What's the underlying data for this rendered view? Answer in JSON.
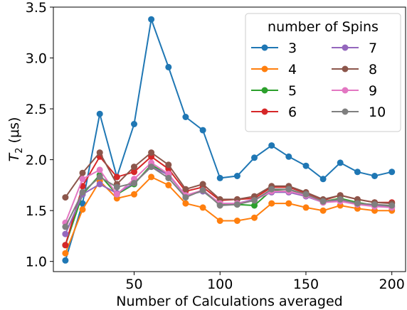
{
  "chart_data": {
    "type": "line",
    "title": "",
    "xlabel": "Number of Calculations averaged",
    "ylabel_parts": {
      "symbol": "T",
      "subscript": "2",
      "unit": " (μs)"
    },
    "xlim": [
      3,
      208
    ],
    "ylim": [
      0.9,
      3.5
    ],
    "xticks": [
      50,
      100,
      150,
      200
    ],
    "xtick_labels": [
      "50",
      "100",
      "150",
      "200"
    ],
    "yticks": [
      1.0,
      1.5,
      2.0,
      2.5,
      3.0,
      3.5
    ],
    "ytick_labels": [
      "1.0",
      "1.5",
      "2.0",
      "2.5",
      "3.0",
      "3.5"
    ],
    "grid": false,
    "legend": {
      "title": "number of Spins",
      "location": "upper right",
      "columns": 2
    },
    "x": [
      10,
      20,
      30,
      40,
      50,
      60,
      70,
      80,
      90,
      100,
      110,
      120,
      130,
      140,
      150,
      160,
      170,
      180,
      190,
      200
    ],
    "series": [
      {
        "name": "3",
        "color": "#1f77b4",
        "values": [
          1.01,
          1.57,
          2.45,
          1.83,
          2.35,
          3.38,
          2.91,
          2.42,
          2.29,
          1.82,
          1.84,
          2.02,
          2.14,
          2.03,
          1.94,
          1.81,
          1.97,
          1.88,
          1.84,
          1.88
        ]
      },
      {
        "name": "4",
        "color": "#ff7f0e",
        "values": [
          1.08,
          1.51,
          1.79,
          1.62,
          1.66,
          1.83,
          1.75,
          1.57,
          1.53,
          1.4,
          1.4,
          1.43,
          1.57,
          1.57,
          1.53,
          1.5,
          1.55,
          1.52,
          1.5,
          1.5
        ]
      },
      {
        "name": "5",
        "color": "#2ca02c",
        "values": [
          1.16,
          1.66,
          1.85,
          1.66,
          1.76,
          1.95,
          1.85,
          1.65,
          1.69,
          1.56,
          1.56,
          1.55,
          1.7,
          1.71,
          1.65,
          1.59,
          1.62,
          1.58,
          1.55,
          1.54
        ]
      },
      {
        "name": "6",
        "color": "#d62728",
        "values": [
          1.16,
          1.74,
          2.03,
          1.83,
          1.88,
          2.03,
          1.91,
          1.69,
          1.73,
          1.6,
          1.61,
          1.62,
          1.73,
          1.73,
          1.67,
          1.6,
          1.65,
          1.61,
          1.58,
          1.58
        ]
      },
      {
        "name": "7",
        "color": "#9467bd",
        "values": [
          1.27,
          1.66,
          1.76,
          1.67,
          1.77,
          1.93,
          1.85,
          1.65,
          1.69,
          1.57,
          1.57,
          1.61,
          1.68,
          1.68,
          1.64,
          1.58,
          1.6,
          1.56,
          1.55,
          1.53
        ]
      },
      {
        "name": "8",
        "color": "#8c564b",
        "values": [
          1.63,
          1.87,
          2.07,
          1.76,
          1.93,
          2.07,
          1.95,
          1.71,
          1.76,
          1.61,
          1.61,
          1.64,
          1.74,
          1.74,
          1.68,
          1.61,
          1.65,
          1.61,
          1.58,
          1.57
        ]
      },
      {
        "name": "9",
        "color": "#e377c2",
        "values": [
          1.38,
          1.81,
          1.9,
          1.66,
          1.81,
          1.97,
          1.86,
          1.65,
          1.7,
          1.57,
          1.57,
          1.6,
          1.69,
          1.69,
          1.65,
          1.58,
          1.59,
          1.56,
          1.54,
          1.53
        ]
      },
      {
        "name": "10",
        "color": "#7f7f7f",
        "values": [
          1.34,
          1.68,
          1.83,
          1.73,
          1.77,
          1.93,
          1.82,
          1.63,
          1.7,
          1.55,
          1.56,
          1.6,
          1.71,
          1.71,
          1.66,
          1.59,
          1.61,
          1.57,
          1.56,
          1.55
        ]
      }
    ]
  }
}
